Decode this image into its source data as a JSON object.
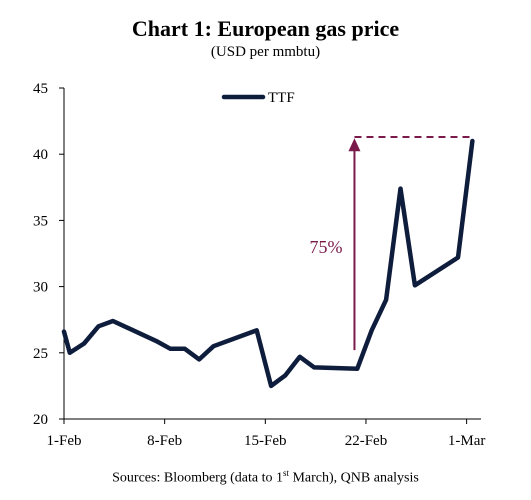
{
  "chart_data": {
    "type": "line",
    "title": "Chart 1: European gas price",
    "subtitle": "(USD per mmbtu)",
    "ylim": [
      20,
      45
    ],
    "yticks": [
      "20",
      "25",
      "30",
      "35",
      "40",
      "45"
    ],
    "xlim": [
      1,
      30
    ],
    "xticks": [
      {
        "label": "1-Feb",
        "day": 1
      },
      {
        "label": "8-Feb",
        "day": 8
      },
      {
        "label": "15-Feb",
        "day": 15
      },
      {
        "label": "22-Feb",
        "day": 22
      },
      {
        "label": "1-Mar",
        "day": 29
      }
    ],
    "grid": false,
    "legend_position": "top-center",
    "series": [
      {
        "name": "TTF",
        "color": "#0f1d3d",
        "x": [
          1,
          1.4,
          2.4,
          3.4,
          4.4,
          7.4,
          8.4,
          9.4,
          10.4,
          11.4,
          14.4,
          15.4,
          16.4,
          17.4,
          18.4,
          21.4,
          22.4,
          23.4,
          24.4,
          25.4,
          28.4,
          29.4
        ],
        "values": [
          26.6,
          25.0,
          25.7,
          27.0,
          27.4,
          25.9,
          25.3,
          25.3,
          24.5,
          25.5,
          26.7,
          22.5,
          23.3,
          24.7,
          23.9,
          23.8,
          26.7,
          29.0,
          37.4,
          30.1,
          32.2,
          41.0
        ]
      }
    ],
    "annotation": {
      "text": "75%",
      "color": "#7a1a4a",
      "arrow_from": 25.2,
      "arrow_to": 41.2,
      "day": 21.2,
      "dashed_level": 41.3,
      "dashed_from_day": 21.2,
      "dashed_to_day": 29.4
    }
  },
  "source": {
    "prefix": "Sources: Bloomberg (data to 1",
    "sup": "st",
    "suffix": " March), QNB analysis"
  }
}
